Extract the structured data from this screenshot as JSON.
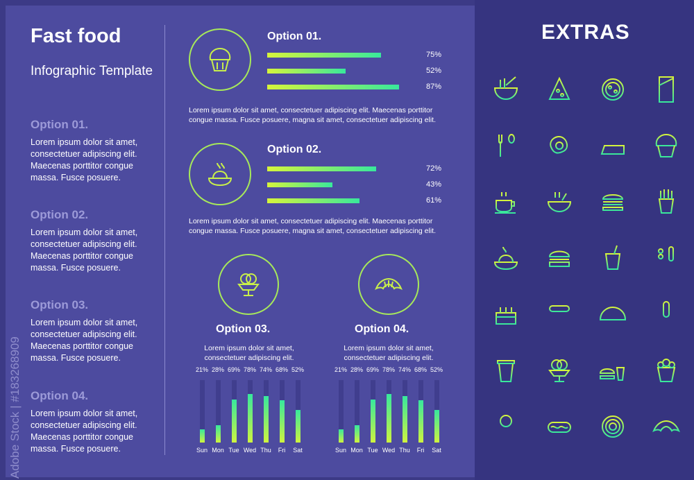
{
  "left": {
    "title": "Fast food",
    "subtitle": "Infographic Template",
    "sections": [
      {
        "heading": "Option 01.",
        "text": "Lorem ipsum dolor sit amet, consectetuer adipiscing elit. Maecenas porttitor congue massa. Fusce posuere."
      },
      {
        "heading": "Option 02.",
        "text": "Lorem ipsum dolor sit amet, consectetuer adipiscing elit. Maecenas porttitor congue massa. Fusce posuere."
      },
      {
        "heading": "Option 03.",
        "text": "Lorem ipsum dolor sit amet, consectetuer adipiscing elit. Maecenas porttitor congue massa. Fusce posuere."
      },
      {
        "heading": "Option 04.",
        "text": "Lorem ipsum dolor sit amet, consectetuer adipiscing elit. Maecenas porttitor congue massa. Fusce posuere."
      }
    ]
  },
  "options": [
    {
      "heading": "Option 01.",
      "icon": "muffin-icon",
      "bars": [
        75,
        52,
        87
      ],
      "labels": [
        "75%",
        "52%",
        "87%"
      ],
      "text": "Lorem ipsum dolor sit amet, consectetuer adipiscing elit. Maecenas porttitor congue massa. Fusce posuere, magna sit amet, consectetuer adipiscing elit."
    },
    {
      "heading": "Option 02.",
      "icon": "pasta-icon",
      "bars": [
        72,
        43,
        61
      ],
      "labels": [
        "72%",
        "43%",
        "61%"
      ],
      "text": "Lorem ipsum dolor sit amet, consectetuer adipiscing elit. Maecenas porttitor congue massa. Fusce posuere, magna sit amet, consectetuer adipiscing elit."
    }
  ],
  "mini": [
    {
      "heading": "Option 03.",
      "icon": "ice-cream-cup-icon",
      "text": "Lorem ipsum dolor sit amet, consectetuer adipiscing elit."
    },
    {
      "heading": "Option 04.",
      "icon": "croissant-icon",
      "text": "Lorem ipsum dolor sit amet, consectetuer adipiscing elit."
    }
  ],
  "chart_data": [
    {
      "type": "bar",
      "categories": [
        "Sun",
        "Mon",
        "Tue",
        "Wed",
        "Thu",
        "Fri",
        "Sat"
      ],
      "values": [
        21,
        28,
        69,
        78,
        74,
        68,
        52
      ],
      "labels": [
        "21%",
        "28%",
        "69%",
        "78%",
        "74%",
        "68%",
        "52%"
      ],
      "ylim": [
        0,
        100
      ]
    },
    {
      "type": "bar",
      "categories": [
        "Sun",
        "Mon",
        "Tue",
        "Wed",
        "Thu",
        "Fri",
        "Sat"
      ],
      "values": [
        21,
        28,
        69,
        78,
        74,
        68,
        52
      ],
      "labels": [
        "21%",
        "28%",
        "69%",
        "78%",
        "74%",
        "68%",
        "52%"
      ],
      "ylim": [
        0,
        100
      ]
    }
  ],
  "extras": {
    "title": "EXTRAS",
    "icons": [
      "noodle-bowl-icon",
      "pizza-slice-icon",
      "pizza-icon",
      "chocolate-bar-icon",
      "fork-spoon-icon",
      "fried-egg-icon",
      "cake-slice-icon",
      "muffin-icon",
      "coffee-cup-icon",
      "soup-bowl-icon",
      "burger-icon",
      "french-fries-icon",
      "pasta-plate-icon",
      "hamburger-icon",
      "soda-cup-icon",
      "skewer-corndog-icon",
      "birthday-cake-icon",
      "sausage-fork-icon",
      "taco-icon",
      "corn-dog-icon",
      "coffee-togo-icon",
      "ice-cream-cup-icon",
      "burger-drink-icon",
      "popcorn-icon",
      "lollipop-icon",
      "hot-dog-icon",
      "donut-icon",
      "croissant-icon"
    ]
  },
  "watermark": "Adobe Stock | #183268909",
  "colors": {
    "accent_start": "#d7f53b",
    "accent_end": "#38e89c",
    "panel": "#4d4b9f",
    "bg": "#3c3a86"
  }
}
